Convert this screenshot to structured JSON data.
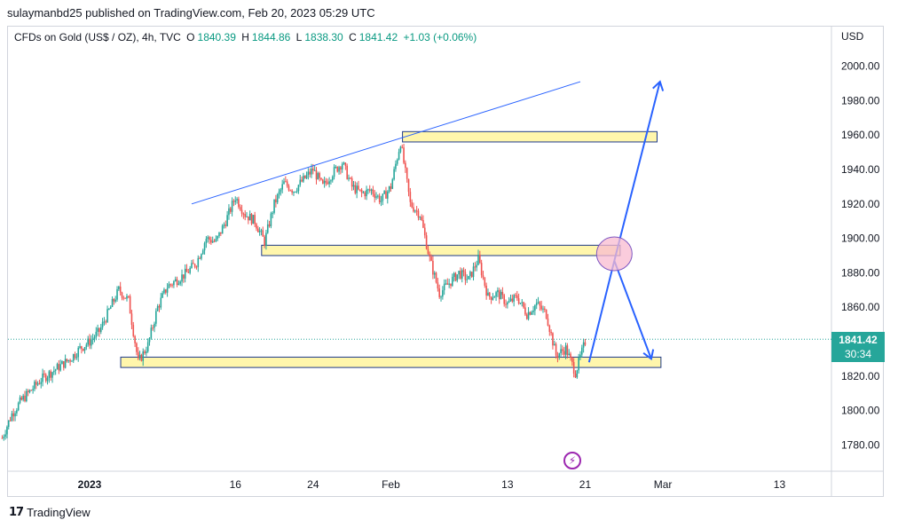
{
  "publish_line": "sulaymanbd25 published on TradingView.com, Feb 20, 2023 05:29 UTC",
  "legend": {
    "symbol": "CFDs on Gold (US$ / OZ), 4h, TVC",
    "open_label": "O",
    "open": "1840.39",
    "high_label": "H",
    "high": "1844.86",
    "low_label": "L",
    "low": "1838.30",
    "close_label": "C",
    "close": "1841.42",
    "change": "+1.03 (+0.06%)"
  },
  "currency": "USD",
  "price_tag": {
    "price": "1841.42",
    "countdown": "30:34"
  },
  "footer_brand": "TradingView",
  "colors": {
    "up": "#26a69a",
    "down": "#ef5350",
    "zone_fill": "#fff59d",
    "zone_stroke": "#1e3a8a",
    "arrow": "#2962ff",
    "ellipse": "#f8bbd0"
  },
  "chart_data": {
    "type": "candlestick",
    "ylim": [
      1770,
      2015
    ],
    "y_ticks": [
      "2000.00",
      "1980.00",
      "1960.00",
      "1940.00",
      "1920.00",
      "1900.00",
      "1880.00",
      "1860.00",
      "1840.00",
      "1820.00",
      "1800.00",
      "1780.00"
    ],
    "x_ticks": [
      {
        "label": "2023",
        "day": 0
      },
      {
        "label": "16",
        "day": 15
      },
      {
        "label": "24",
        "day": 23
      },
      {
        "label": "Feb",
        "day": 31
      },
      {
        "label": "13",
        "day": 43
      },
      {
        "label": "21",
        "day": 51
      },
      {
        "label": "Mar",
        "day": 59
      },
      {
        "label": "13",
        "day": 71
      }
    ],
    "price_path": [
      [
        -9,
        1784
      ],
      [
        -8,
        1798
      ],
      [
        -7,
        1806
      ],
      [
        -6,
        1812
      ],
      [
        -5,
        1818
      ],
      [
        -4,
        1822
      ],
      [
        -3,
        1826
      ],
      [
        -2,
        1830
      ],
      [
        -1,
        1836
      ],
      [
        0,
        1840
      ],
      [
        1,
        1846
      ],
      [
        2,
        1858
      ],
      [
        3,
        1870
      ],
      [
        4,
        1864
      ],
      [
        5,
        1828
      ],
      [
        6,
        1838
      ],
      [
        7,
        1860
      ],
      [
        8,
        1872
      ],
      [
        9,
        1876
      ],
      [
        10,
        1880
      ],
      [
        11,
        1886
      ],
      [
        12,
        1900
      ],
      [
        13,
        1898
      ],
      [
        14,
        1910
      ],
      [
        15,
        1924
      ],
      [
        16,
        1914
      ],
      [
        17,
        1910
      ],
      [
        18,
        1898
      ],
      [
        19,
        1920
      ],
      [
        20,
        1932
      ],
      [
        21,
        1928
      ],
      [
        22,
        1934
      ],
      [
        23,
        1940
      ],
      [
        24,
        1930
      ],
      [
        25,
        1938
      ],
      [
        26,
        1944
      ],
      [
        27,
        1930
      ],
      [
        28,
        1926
      ],
      [
        29,
        1928
      ],
      [
        30,
        1922
      ],
      [
        31,
        1930
      ],
      [
        32,
        1956
      ],
      [
        33,
        1920
      ],
      [
        34,
        1914
      ],
      [
        35,
        1888
      ],
      [
        36,
        1868
      ],
      [
        37,
        1874
      ],
      [
        38,
        1880
      ],
      [
        39,
        1876
      ],
      [
        40,
        1888
      ],
      [
        41,
        1866
      ],
      [
        42,
        1868
      ],
      [
        43,
        1862
      ],
      [
        44,
        1866
      ],
      [
        45,
        1856
      ],
      [
        46,
        1862
      ],
      [
        47,
        1856
      ],
      [
        48,
        1832
      ],
      [
        49,
        1836
      ],
      [
        50,
        1822
      ],
      [
        51,
        1840
      ]
    ],
    "zones": [
      {
        "x0": 32.2,
        "x1": 58.4,
        "y0": 1956,
        "y1": 1962
      },
      {
        "x0": 17.7,
        "x1": 54.6,
        "y0": 1890,
        "y1": 1896
      },
      {
        "x0": 3.2,
        "x1": 58.8,
        "y0": 1825,
        "y1": 1831
      }
    ],
    "trendline": {
      "x0": 10.5,
      "y0": 1920,
      "x1": 50.5,
      "y1": 1991
    },
    "projection_path": [
      [
        51.4,
        1828
      ],
      [
        54.0,
        1887
      ],
      [
        58.7,
        1991
      ]
    ],
    "projection_branch": [
      [
        54.0,
        1887
      ],
      [
        57.8,
        1830
      ]
    ],
    "marker": {
      "x": 54.0,
      "y": 1891
    },
    "last_price": 1841.42
  }
}
